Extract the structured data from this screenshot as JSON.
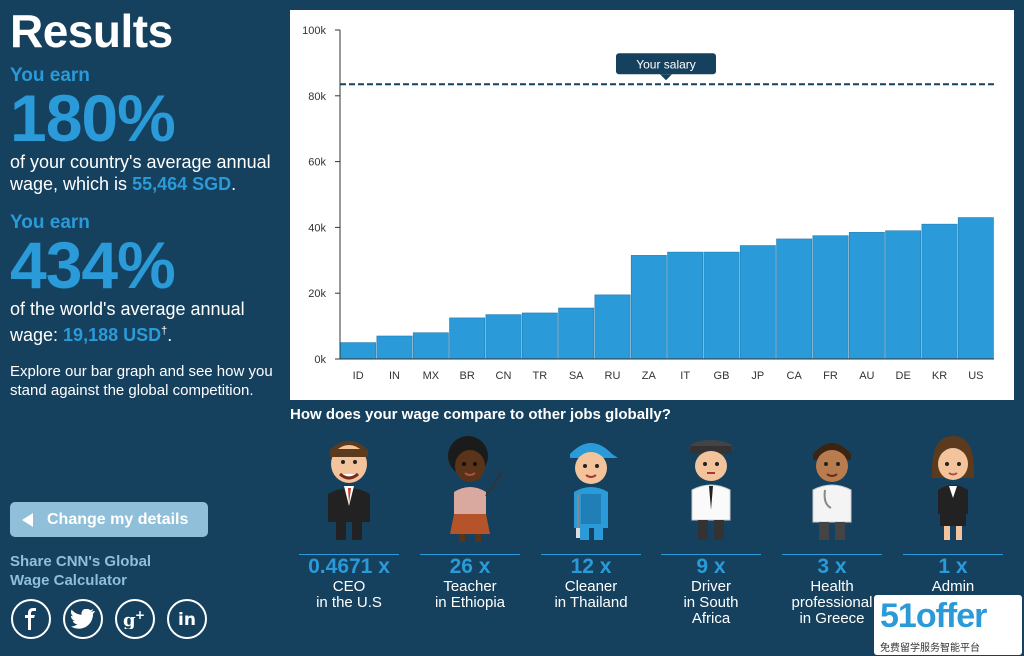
{
  "header": {
    "title": "Results"
  },
  "country": {
    "you_earn": "You earn",
    "percent": "180%",
    "text": "of your country's average annual wage, which is ",
    "amount": "55,464 SGD",
    "end": "."
  },
  "world": {
    "you_earn": "You earn",
    "percent": "434%",
    "text": "of the world's average annual wage: ",
    "amount": "19,188 USD",
    "dagger": "†",
    "end": "."
  },
  "explore_text": "Explore our bar graph and see how you stand against the global competition.",
  "change_button": "Change my details",
  "share": {
    "line1": "Share CNN's Global",
    "line2": "Wage Calculator"
  },
  "social_icons": [
    "facebook-icon",
    "twitter-icon",
    "google-plus-icon",
    "linkedin-icon"
  ],
  "chart_data": {
    "type": "bar",
    "categories": [
      "ID",
      "IN",
      "MX",
      "BR",
      "CN",
      "TR",
      "SA",
      "RU",
      "ZA",
      "IT",
      "GB",
      "JP",
      "CA",
      "FR",
      "AU",
      "DE",
      "KR",
      "US"
    ],
    "values": [
      5000,
      7000,
      8000,
      12500,
      13500,
      14000,
      15500,
      19500,
      31500,
      32500,
      32500,
      34500,
      36500,
      37500,
      38500,
      39000,
      41000,
      43000
    ],
    "y_ticks": [
      "0k",
      "20k",
      "40k",
      "60k",
      "80k",
      "100k"
    ],
    "ylim": [
      0,
      100000
    ],
    "reference_line": {
      "label": "Your salary",
      "value": 83500
    },
    "bar_color": "#2a9ad8"
  },
  "compare": {
    "title": "How does your wage compare to other jobs globally?",
    "jobs": [
      {
        "mult": "0.4671 x",
        "line1": "CEO",
        "line2": "in the U.S",
        "line3": ""
      },
      {
        "mult": "26 x",
        "line1": "Teacher",
        "line2": "in Ethiopia",
        "line3": ""
      },
      {
        "mult": "12 x",
        "line1": "Cleaner",
        "line2": "in Thailand",
        "line3": ""
      },
      {
        "mult": "9 x",
        "line1": "Driver",
        "line2": "in South",
        "line3": "Africa"
      },
      {
        "mult": "3 x",
        "line1": "Health",
        "line2": "professional",
        "line3": "in Greece"
      },
      {
        "mult": "1 x",
        "line1": "Admin",
        "line2": "",
        "line3": ""
      }
    ]
  },
  "watermark": {
    "title": "51offer",
    "subtitle": "免费留学服务智能平台"
  },
  "colors": {
    "background": "#15415f",
    "accent": "#2a9ad8",
    "button": "#8fbfd9"
  }
}
